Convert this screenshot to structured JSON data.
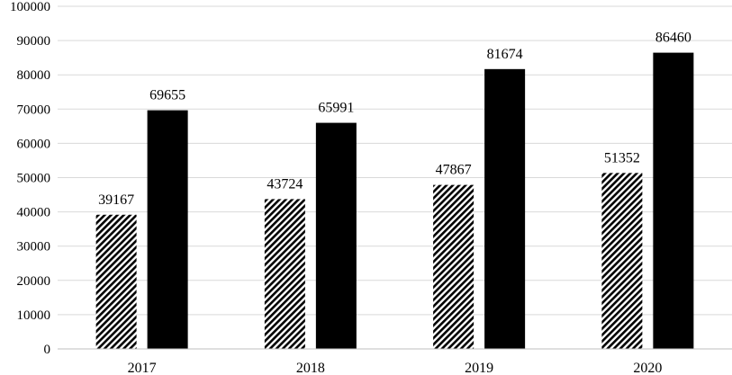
{
  "chart_data": {
    "type": "bar",
    "title": "",
    "xlabel": "",
    "ylabel": "",
    "categories": [
      "2017",
      "2018",
      "2019",
      "2020"
    ],
    "series": [
      {
        "values": [
          39167,
          43724,
          47867,
          51352
        ],
        "pattern": "diagonal-hatch",
        "color": "#000000"
      },
      {
        "values": [
          69655,
          65991,
          81674,
          86460
        ],
        "pattern": "solid",
        "color": "#000000"
      }
    ],
    "ylim": [
      0,
      100000
    ],
    "yticks": [
      0,
      10000,
      20000,
      30000,
      40000,
      50000,
      60000,
      70000,
      80000,
      90000,
      100000
    ],
    "grid": true,
    "legend": "none",
    "data_labels": true,
    "colors": {
      "gridline": "#d9d9d9",
      "axis": "#bfbfbf"
    }
  }
}
